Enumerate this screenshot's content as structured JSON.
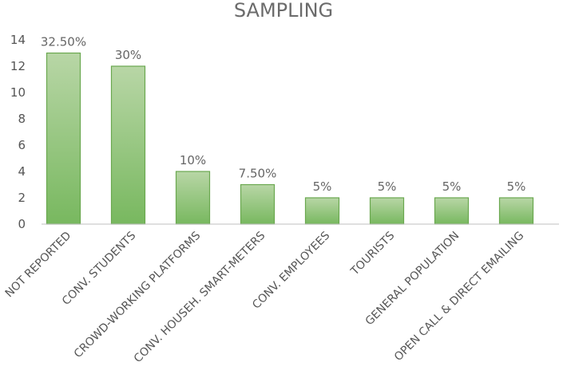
{
  "chart_data": {
    "type": "bar",
    "title": "SAMPLING",
    "xlabel": "",
    "ylabel": "",
    "ylim": [
      0,
      14
    ],
    "yticks": [
      "0",
      "2",
      "4",
      "6",
      "8",
      "10",
      "12",
      "14"
    ],
    "grid": false,
    "legend": "none",
    "categories": [
      "NOT REPORTED",
      "CONV. STUDENTS",
      "CROWD-WORKING PLATFORMS",
      "CONV. HOUSEH. SMART-METERS",
      "CONV. EMPLOYEES",
      "TOURISTS",
      "GENERAL POPULATION",
      "OPEN CALL & DIRECT EMAILING"
    ],
    "values": [
      13,
      12,
      4,
      3,
      2,
      2,
      2,
      2
    ],
    "data_labels": [
      "32.50%",
      "30%",
      "10%",
      "7.50%",
      "5%",
      "5%",
      "5%",
      "5%"
    ],
    "colors": {
      "bar_top": "#b8d6a6",
      "bar_bottom": "#78b85f",
      "bar_edge": "#6aa84f",
      "axis": "#bfbfbf"
    }
  }
}
